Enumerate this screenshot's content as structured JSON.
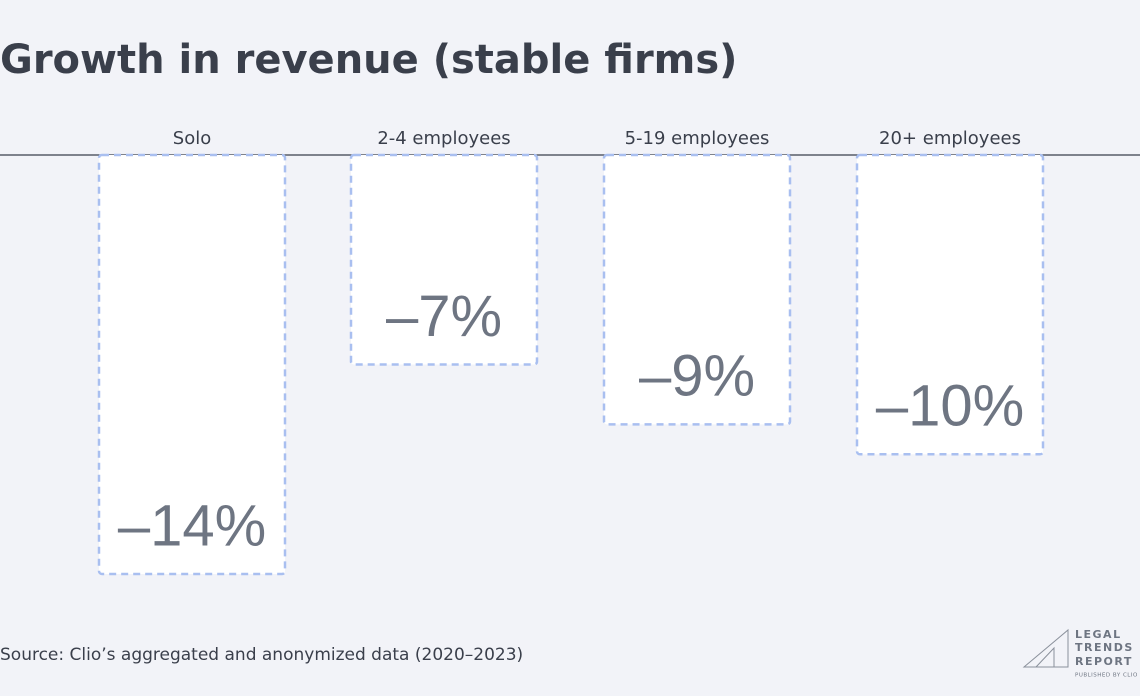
{
  "chart_data": {
    "type": "bar",
    "title": "Growth in revenue (stable firms)",
    "categories": [
      "Solo",
      "2-4 employees",
      "5-19 employees",
      "20+ employees"
    ],
    "values": [
      -14,
      -7,
      -9,
      -10
    ],
    "value_labels": [
      "–14%",
      "–7%",
      "–9%",
      "–10%"
    ],
    "color": "#a9bff0",
    "ylim": [
      -14,
      0
    ],
    "source": "Source: Clio’s aggregated and anonymized data (2020–2023)"
  },
  "logo": {
    "lines": [
      "LEGAL",
      "TRENDS",
      "REPORT"
    ],
    "tagline": "PUBLISHED BY CLIO"
  }
}
